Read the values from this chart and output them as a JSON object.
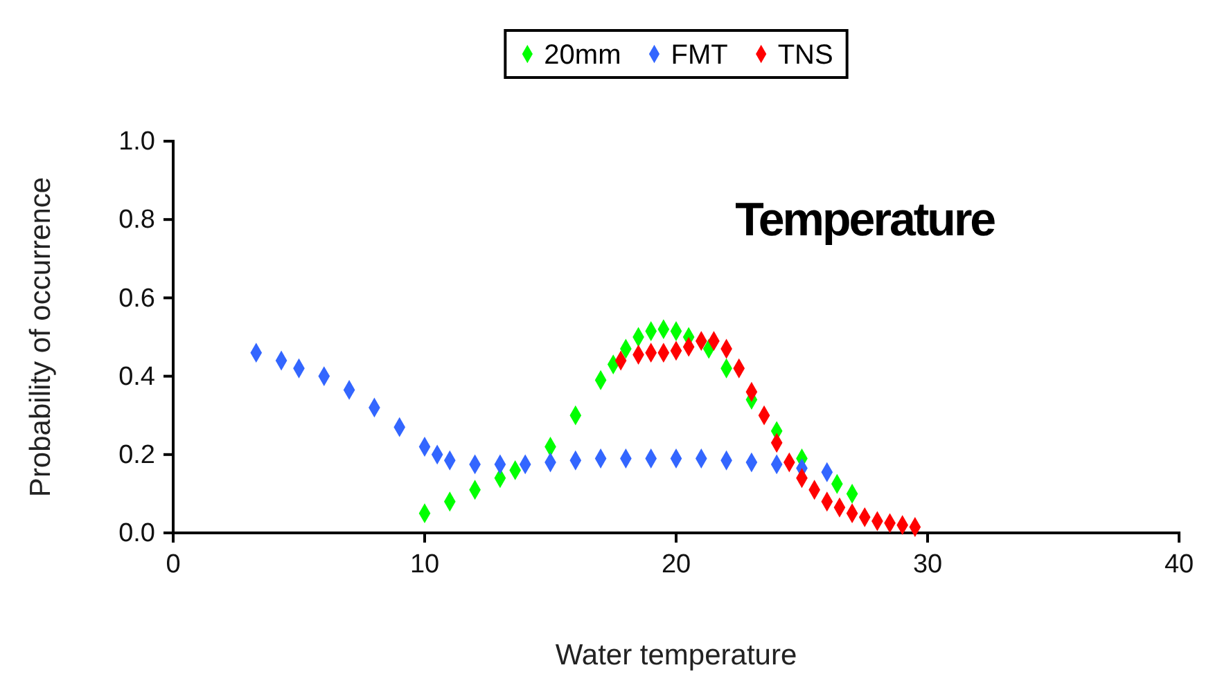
{
  "chart_data": {
    "type": "scatter",
    "title": "Temperature",
    "xlabel": "Water temperature",
    "ylabel": "Probability of occurrence",
    "xlim": [
      0,
      40
    ],
    "xticks": [
      0,
      10,
      20,
      30,
      40
    ],
    "ylim": [
      0,
      1
    ],
    "yticks": [
      {
        "value": 0,
        "label": "0.0"
      },
      {
        "value": 0.2,
        "label": "0.2"
      },
      {
        "value": 0.4,
        "label": "0.4"
      },
      {
        "value": 0.6,
        "label": "0.6"
      },
      {
        "value": 0.8,
        "label": "0.8"
      },
      {
        "value": 1,
        "label": "1.0"
      }
    ],
    "grid": false,
    "legend": "top",
    "marker": "diamond",
    "series": [
      {
        "name": "20mm",
        "color": "#00ff00",
        "x": [
          10,
          11,
          12,
          13,
          13.6,
          15,
          16,
          17,
          17.5,
          18,
          18.5,
          19,
          19.5,
          20,
          20.5,
          21.3,
          22,
          23,
          24,
          25,
          26.4,
          27
        ],
        "values": [
          0.05,
          0.08,
          0.11,
          0.14,
          0.16,
          0.22,
          0.3,
          0.39,
          0.43,
          0.47,
          0.5,
          0.515,
          0.52,
          0.515,
          0.5,
          0.47,
          0.42,
          0.34,
          0.26,
          0.19,
          0.125,
          0.1
        ]
      },
      {
        "name": "FMT",
        "color": "#3366ff",
        "x": [
          3.3,
          4.3,
          5,
          6,
          7,
          8,
          9,
          10,
          10.5,
          11,
          12,
          13,
          14,
          15,
          16,
          17,
          18,
          19,
          20,
          21,
          22,
          23,
          24,
          25,
          26
        ],
        "values": [
          0.46,
          0.44,
          0.42,
          0.4,
          0.365,
          0.32,
          0.27,
          0.22,
          0.2,
          0.185,
          0.175,
          0.175,
          0.175,
          0.18,
          0.185,
          0.19,
          0.19,
          0.19,
          0.19,
          0.19,
          0.185,
          0.18,
          0.175,
          0.165,
          0.155
        ]
      },
      {
        "name": "TNS",
        "color": "#ff0000",
        "x": [
          17.8,
          18.5,
          19,
          19.5,
          20,
          20.5,
          21,
          21.5,
          22,
          22.5,
          23,
          23.5,
          24,
          24.5,
          25,
          25.5,
          26,
          26.5,
          27,
          27.5,
          28,
          28.5,
          29,
          29.5
        ],
        "values": [
          0.44,
          0.455,
          0.46,
          0.46,
          0.465,
          0.475,
          0.49,
          0.49,
          0.47,
          0.42,
          0.36,
          0.3,
          0.23,
          0.18,
          0.14,
          0.11,
          0.08,
          0.065,
          0.05,
          0.04,
          0.03,
          0.025,
          0.02,
          0.015
        ]
      }
    ]
  }
}
